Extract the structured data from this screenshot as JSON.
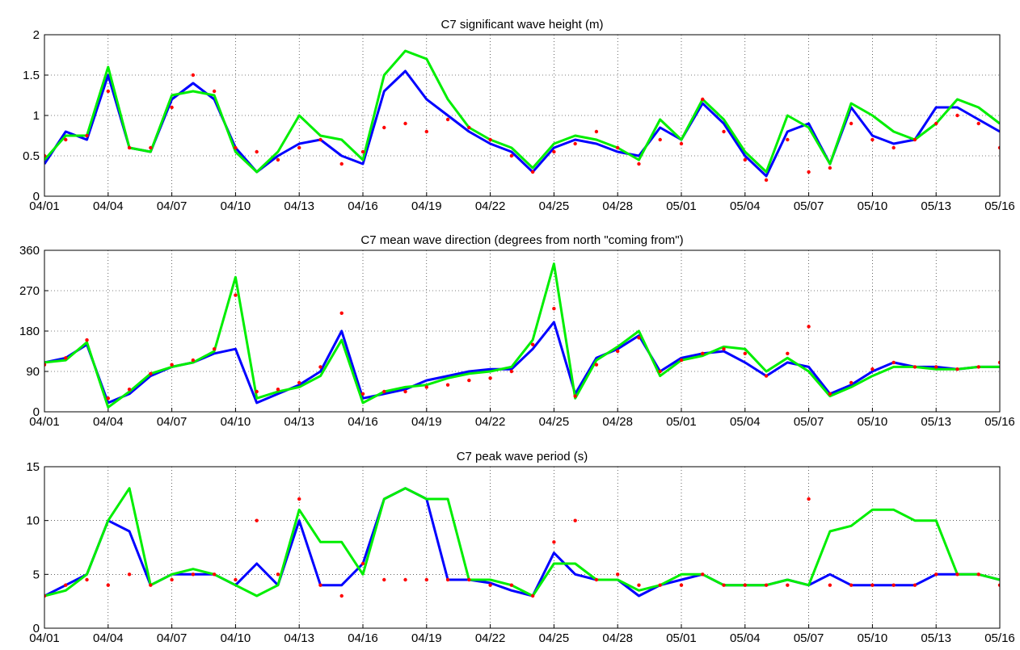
{
  "chart_data": [
    {
      "type": "line",
      "title": "C7 significant wave height (m)",
      "grid": true,
      "x": [
        0,
        1,
        2,
        3,
        4,
        5,
        6,
        7,
        8,
        9,
        10,
        11,
        12,
        13,
        14,
        15,
        16,
        17,
        18,
        19,
        20,
        21,
        22,
        23,
        24,
        25,
        26,
        27,
        28,
        29,
        30,
        31,
        32,
        33,
        34,
        35,
        36,
        37,
        38,
        39,
        40,
        41,
        42,
        43,
        44,
        45
      ],
      "xlim": [
        0,
        45
      ],
      "xticks": [
        {
          "value": 0,
          "label": "04/01"
        },
        {
          "value": 3,
          "label": "04/04"
        },
        {
          "value": 6,
          "label": "04/07"
        },
        {
          "value": 9,
          "label": "04/10"
        },
        {
          "value": 12,
          "label": "04/13"
        },
        {
          "value": 15,
          "label": "04/16"
        },
        {
          "value": 18,
          "label": "04/19"
        },
        {
          "value": 21,
          "label": "04/22"
        },
        {
          "value": 24,
          "label": "04/25"
        },
        {
          "value": 27,
          "label": "04/28"
        },
        {
          "value": 30,
          "label": "05/01"
        },
        {
          "value": 33,
          "label": "05/04"
        },
        {
          "value": 36,
          "label": "05/07"
        },
        {
          "value": 39,
          "label": "05/10"
        },
        {
          "value": 42,
          "label": "05/13"
        },
        {
          "value": 45,
          "label": "05/16"
        }
      ],
      "ylim": [
        0,
        2
      ],
      "yticks": [
        0,
        0.5,
        1,
        1.5,
        2
      ],
      "series": [
        {
          "color": "#0000ff",
          "mode": "line",
          "values": [
            0.4,
            0.8,
            0.7,
            1.5,
            0.6,
            0.55,
            1.2,
            1.4,
            1.2,
            0.6,
            0.3,
            0.5,
            0.65,
            0.7,
            0.5,
            0.4,
            1.3,
            1.55,
            1.2,
            1.0,
            0.8,
            0.65,
            0.55,
            0.3,
            0.6,
            0.7,
            0.65,
            0.55,
            0.5,
            0.85,
            0.7,
            1.15,
            0.9,
            0.5,
            0.25,
            0.8,
            0.9,
            0.4,
            1.1,
            0.75,
            0.65,
            0.7,
            1.1,
            1.1,
            0.95,
            0.8
          ]
        },
        {
          "color": "#00ee00",
          "mode": "line",
          "values": [
            0.45,
            0.75,
            0.75,
            1.6,
            0.6,
            0.55,
            1.25,
            1.3,
            1.25,
            0.55,
            0.3,
            0.55,
            1.0,
            0.75,
            0.7,
            0.45,
            1.5,
            1.8,
            1.7,
            1.2,
            0.85,
            0.7,
            0.6,
            0.35,
            0.65,
            0.75,
            0.7,
            0.6,
            0.45,
            0.95,
            0.7,
            1.2,
            0.95,
            0.55,
            0.3,
            1.0,
            0.85,
            0.4,
            1.15,
            1.0,
            0.8,
            0.7,
            0.9,
            1.2,
            1.1,
            0.9
          ]
        },
        {
          "color": "#ff0000",
          "mode": "markers",
          "values": [
            0.5,
            0.7,
            0.75,
            1.3,
            0.6,
            0.6,
            1.1,
            1.5,
            1.3,
            0.6,
            0.55,
            0.45,
            0.6,
            0.7,
            0.4,
            0.55,
            0.85,
            0.9,
            0.8,
            0.95,
            0.85,
            0.7,
            0.5,
            0.3,
            0.55,
            0.65,
            0.8,
            0.6,
            0.4,
            0.7,
            0.65,
            1.2,
            0.8,
            0.45,
            0.2,
            0.7,
            0.3,
            0.35,
            0.9,
            0.7,
            0.6,
            0.7,
            0.9,
            1.0,
            0.9,
            0.6
          ]
        }
      ]
    },
    {
      "type": "line",
      "title": "C7 mean wave direction (degrees from north \"coming from\")",
      "grid": true,
      "x": [
        0,
        1,
        2,
        3,
        4,
        5,
        6,
        7,
        8,
        9,
        10,
        11,
        12,
        13,
        14,
        15,
        16,
        17,
        18,
        19,
        20,
        21,
        22,
        23,
        24,
        25,
        26,
        27,
        28,
        29,
        30,
        31,
        32,
        33,
        34,
        35,
        36,
        37,
        38,
        39,
        40,
        41,
        42,
        43,
        44,
        45
      ],
      "xlim": [
        0,
        45
      ],
      "xticks": [
        {
          "value": 0,
          "label": "04/01"
        },
        {
          "value": 3,
          "label": "04/04"
        },
        {
          "value": 6,
          "label": "04/07"
        },
        {
          "value": 9,
          "label": "04/10"
        },
        {
          "value": 12,
          "label": "04/13"
        },
        {
          "value": 15,
          "label": "04/16"
        },
        {
          "value": 18,
          "label": "04/19"
        },
        {
          "value": 21,
          "label": "04/22"
        },
        {
          "value": 24,
          "label": "04/25"
        },
        {
          "value": 27,
          "label": "04/28"
        },
        {
          "value": 30,
          "label": "05/01"
        },
        {
          "value": 33,
          "label": "05/04"
        },
        {
          "value": 36,
          "label": "05/07"
        },
        {
          "value": 39,
          "label": "05/10"
        },
        {
          "value": 42,
          "label": "05/13"
        },
        {
          "value": 45,
          "label": "05/16"
        }
      ],
      "ylim": [
        0,
        360
      ],
      "yticks": [
        0,
        90,
        180,
        270,
        360
      ],
      "series": [
        {
          "color": "#0000ff",
          "mode": "line",
          "values": [
            110,
            120,
            150,
            20,
            40,
            80,
            100,
            110,
            130,
            140,
            20,
            40,
            60,
            90,
            180,
            30,
            40,
            50,
            70,
            80,
            90,
            95,
            95,
            140,
            200,
            40,
            120,
            140,
            170,
            90,
            120,
            130,
            135,
            110,
            80,
            110,
            100,
            40,
            60,
            90,
            110,
            100,
            100,
            95,
            100,
            100
          ]
        },
        {
          "color": "#00ee00",
          "mode": "line",
          "values": [
            110,
            115,
            155,
            10,
            45,
            85,
            100,
            110,
            135,
            300,
            30,
            45,
            55,
            80,
            160,
            20,
            45,
            55,
            60,
            75,
            85,
            90,
            100,
            160,
            330,
            30,
            115,
            145,
            180,
            80,
            115,
            125,
            145,
            140,
            90,
            120,
            90,
            35,
            55,
            80,
            100,
            100,
            95,
            95,
            100,
            100
          ]
        },
        {
          "color": "#ff0000",
          "mode": "markers",
          "values": [
            105,
            120,
            160,
            30,
            50,
            85,
            105,
            115,
            140,
            260,
            45,
            50,
            65,
            100,
            220,
            40,
            45,
            45,
            55,
            60,
            70,
            75,
            90,
            150,
            230,
            35,
            105,
            135,
            165,
            90,
            115,
            130,
            140,
            130,
            80,
            130,
            190,
            40,
            65,
            95,
            110,
            100,
            100,
            95,
            100,
            110
          ]
        }
      ]
    },
    {
      "type": "line",
      "title": "C7 peak wave period (s)",
      "grid": true,
      "x": [
        0,
        1,
        2,
        3,
        4,
        5,
        6,
        7,
        8,
        9,
        10,
        11,
        12,
        13,
        14,
        15,
        16,
        17,
        18,
        19,
        20,
        21,
        22,
        23,
        24,
        25,
        26,
        27,
        28,
        29,
        30,
        31,
        32,
        33,
        34,
        35,
        36,
        37,
        38,
        39,
        40,
        41,
        42,
        43,
        44,
        45
      ],
      "xlim": [
        0,
        45
      ],
      "xticks": [
        {
          "value": 0,
          "label": "04/01"
        },
        {
          "value": 3,
          "label": "04/04"
        },
        {
          "value": 6,
          "label": "04/07"
        },
        {
          "value": 9,
          "label": "04/10"
        },
        {
          "value": 12,
          "label": "04/13"
        },
        {
          "value": 15,
          "label": "04/16"
        },
        {
          "value": 18,
          "label": "04/19"
        },
        {
          "value": 21,
          "label": "04/22"
        },
        {
          "value": 24,
          "label": "04/25"
        },
        {
          "value": 27,
          "label": "04/28"
        },
        {
          "value": 30,
          "label": "05/01"
        },
        {
          "value": 33,
          "label": "05/04"
        },
        {
          "value": 36,
          "label": "05/07"
        },
        {
          "value": 39,
          "label": "05/10"
        },
        {
          "value": 42,
          "label": "05/13"
        },
        {
          "value": 45,
          "label": "05/16"
        }
      ],
      "ylim": [
        0,
        15
      ],
      "yticks": [
        0,
        5,
        10,
        15
      ],
      "series": [
        {
          "color": "#0000ff",
          "mode": "line",
          "values": [
            3,
            4,
            5,
            10,
            9,
            4,
            5,
            5,
            5,
            4,
            6,
            4,
            10,
            4,
            4,
            6,
            12,
            13,
            12,
            4.5,
            4.5,
            4.2,
            3.5,
            3,
            7,
            5,
            4.5,
            4.5,
            3,
            4,
            4.5,
            5,
            4,
            4,
            4,
            4.5,
            4,
            5,
            4,
            4,
            4,
            4,
            5,
            5,
            5,
            4.5
          ]
        },
        {
          "color": "#00ee00",
          "mode": "line",
          "values": [
            3,
            3.5,
            5,
            10,
            13,
            4,
            5,
            5.5,
            5,
            4,
            3,
            4,
            11,
            8,
            8,
            5,
            12,
            13,
            12,
            12,
            4.5,
            4.5,
            4,
            3,
            6,
            6,
            4.5,
            4.5,
            3.5,
            4,
            5,
            5,
            4,
            4,
            4,
            4.5,
            4,
            9,
            9.5,
            11,
            11,
            10,
            10,
            5,
            5,
            4.5
          ]
        },
        {
          "color": "#ff0000",
          "mode": "markers",
          "values": [
            3,
            4,
            4.5,
            4,
            5,
            4,
            4.5,
            5,
            5,
            4.5,
            10,
            5,
            12,
            4,
            3,
            6,
            4.5,
            4.5,
            4.5,
            4.5,
            4.5,
            4,
            4,
            3,
            8,
            10,
            4.5,
            5,
            4,
            4,
            4,
            5,
            4,
            4,
            4,
            4,
            12,
            4,
            4,
            4,
            4,
            4,
            5,
            5,
            5,
            4
          ]
        }
      ]
    }
  ]
}
